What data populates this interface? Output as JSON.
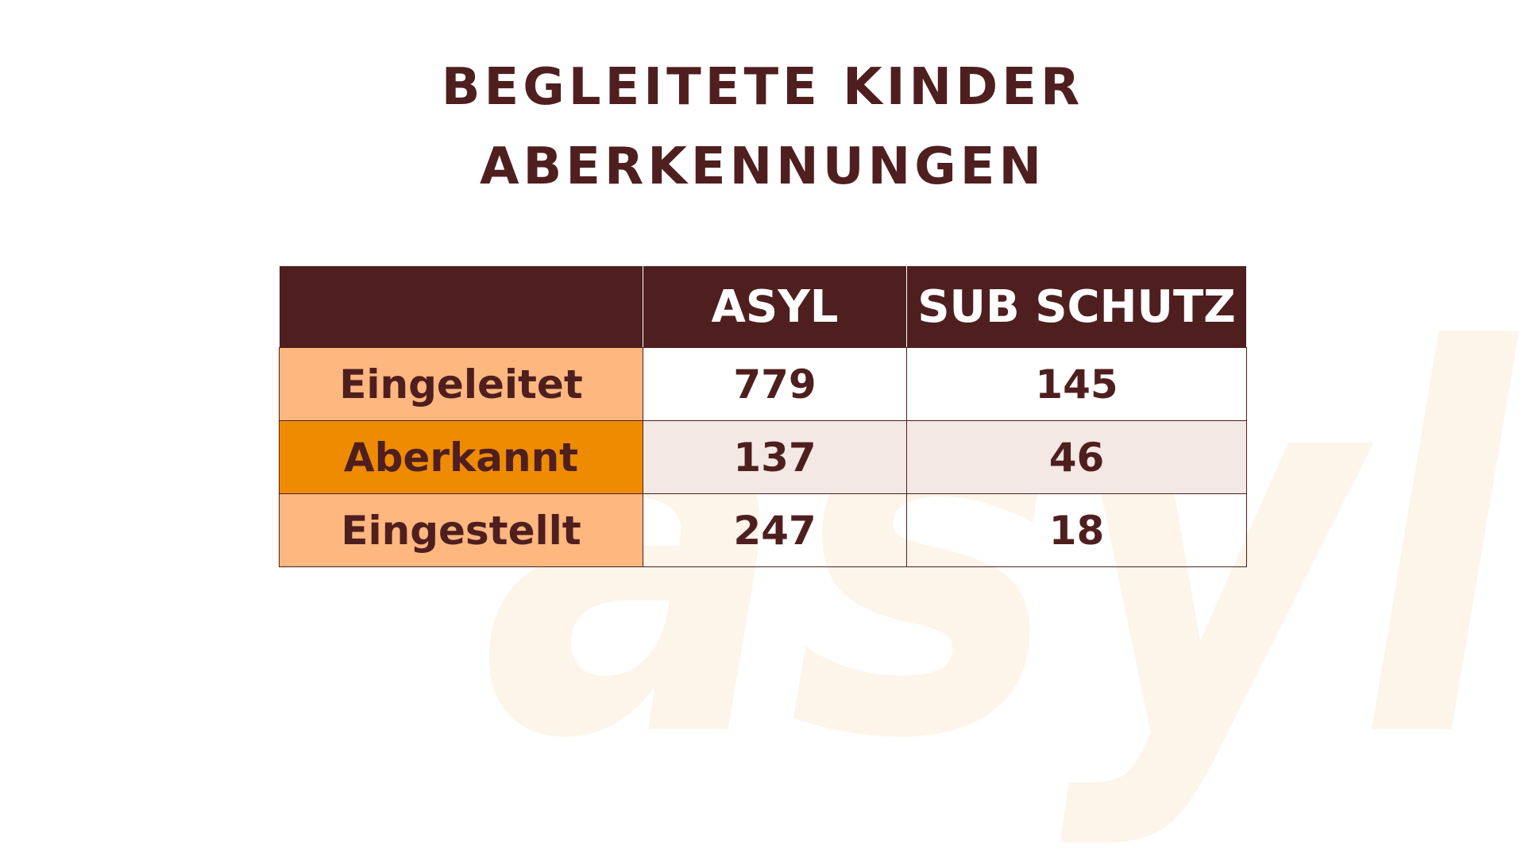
{
  "watermark": "asyl",
  "title": [
    "BEGLEITETE KINDER",
    "ABERKENNUNGEN"
  ],
  "table": {
    "header": [
      "",
      "ASYL",
      "SUB SCHUTZ"
    ],
    "rows": [
      [
        "Eingeleitet",
        "779",
        "145"
      ],
      [
        "Aberkannt",
        "137",
        "46"
      ],
      [
        "Eingestellt",
        "247",
        "18"
      ]
    ]
  }
}
